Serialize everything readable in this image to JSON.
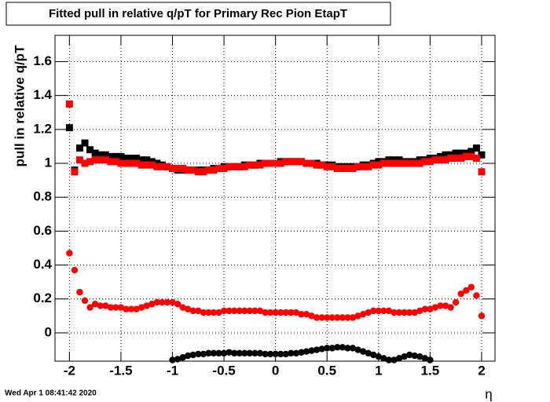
{
  "chart_data": {
    "type": "scatter",
    "title": "Fitted pull in relative q/pT for Primary Rec Pion EtapT",
    "y_label": "pull in relative q/pT",
    "x_label": "η",
    "timestamp": "Wed Apr  1 08:41:42 2020",
    "xlim": [
      -2.14,
      2.13
    ],
    "ylim": [
      -0.167,
      1.755
    ],
    "xticks": [
      -2,
      -1.5,
      -1,
      -0.5,
      0,
      0.5,
      1,
      1.5,
      2
    ],
    "yticks": [
      0,
      0.2,
      0.4,
      0.6,
      0.8,
      1,
      1.2,
      1.4,
      1.6
    ],
    "grid": true,
    "x": [
      -2,
      -1.95,
      -1.9,
      -1.85,
      -1.8,
      -1.75,
      -1.7,
      -1.65,
      -1.6,
      -1.55,
      -1.5,
      -1.45,
      -1.4,
      -1.35,
      -1.3,
      -1.25,
      -1.2,
      -1.15,
      -1.1,
      -1.05,
      -1,
      -0.95,
      -0.9,
      -0.85,
      -0.8,
      -0.75,
      -0.7,
      -0.65,
      -0.6,
      -0.55,
      -0.5,
      -0.45,
      -0.4,
      -0.35,
      -0.3,
      -0.25,
      -0.2,
      -0.15,
      -0.1,
      -0.05,
      0,
      0.05,
      0.1,
      0.15,
      0.2,
      0.25,
      0.3,
      0.35,
      0.4,
      0.45,
      0.5,
      0.55,
      0.6,
      0.65,
      0.7,
      0.75,
      0.8,
      0.85,
      0.9,
      0.95,
      1,
      1.05,
      1.1,
      1.15,
      1.2,
      1.25,
      1.3,
      1.35,
      1.4,
      1.45,
      1.5,
      1.55,
      1.6,
      1.65,
      1.7,
      1.75,
      1.8,
      1.85,
      1.9,
      1.95,
      2
    ],
    "series": [
      {
        "color": "#000000",
        "marker": "square",
        "values": [
          1.21,
          0.96,
          1.09,
          1.12,
          1.08,
          1.06,
          1.05,
          1.05,
          1.04,
          1.04,
          1.04,
          1.03,
          1.03,
          1.03,
          1.02,
          1.02,
          1.01,
          1.0,
          0.99,
          0.98,
          0.97,
          0.96,
          0.96,
          0.96,
          0.96,
          0.96,
          0.96,
          0.96,
          0.97,
          0.97,
          0.98,
          0.98,
          0.98,
          0.98,
          0.99,
          0.99,
          0.99,
          1.0,
          1.0,
          1.0,
          1.0,
          1.01,
          1.01,
          1.01,
          1.01,
          1.01,
          1.0,
          1.0,
          1.0,
          0.99,
          0.99,
          0.99,
          0.98,
          0.98,
          0.98,
          0.98,
          0.98,
          0.99,
          0.99,
          1.0,
          1.01,
          1.01,
          1.02,
          1.02,
          1.02,
          1.01,
          1.01,
          1.01,
          1.02,
          1.02,
          1.03,
          1.03,
          1.04,
          1.05,
          1.05,
          1.06,
          1.06,
          1.06,
          1.07,
          1.09,
          1.05
        ]
      },
      {
        "color": "#ff0000",
        "marker": "square",
        "values": [
          1.35,
          0.95,
          1.02,
          1.0,
          1.01,
          1.02,
          1.02,
          1.02,
          1.01,
          1.01,
          1.0,
          1.0,
          1.0,
          1.0,
          0.99,
          0.99,
          0.99,
          0.98,
          0.98,
          0.98,
          0.97,
          0.97,
          0.97,
          0.96,
          0.96,
          0.95,
          0.95,
          0.96,
          0.96,
          0.97,
          0.97,
          0.98,
          0.98,
          0.98,
          0.98,
          0.99,
          0.99,
          0.99,
          1.0,
          1.0,
          1.0,
          1.0,
          1.01,
          1.01,
          1.01,
          1.01,
          1.0,
          1.0,
          0.99,
          0.99,
          0.98,
          0.98,
          0.97,
          0.97,
          0.97,
          0.97,
          0.98,
          0.98,
          0.98,
          0.99,
          0.99,
          1.0,
          1.0,
          1.0,
          1.0,
          1.0,
          1.0,
          1.0,
          1.0,
          1.01,
          1.01,
          1.02,
          1.02,
          1.02,
          1.03,
          1.03,
          1.03,
          1.04,
          1.04,
          1.03,
          0.95
        ]
      },
      {
        "color": "#000000",
        "marker": "circle",
        "values": [
          null,
          null,
          null,
          null,
          null,
          null,
          null,
          null,
          null,
          null,
          null,
          null,
          null,
          null,
          null,
          null,
          null,
          null,
          null,
          null,
          -0.16,
          -0.155,
          -0.145,
          -0.135,
          -0.13,
          -0.125,
          -0.125,
          -0.12,
          -0.12,
          -0.12,
          -0.12,
          -0.115,
          -0.12,
          -0.12,
          -0.12,
          -0.12,
          -0.12,
          -0.12,
          -0.125,
          -0.125,
          -0.125,
          -0.125,
          -0.125,
          -0.12,
          -0.12,
          -0.115,
          -0.11,
          -0.105,
          -0.1,
          -0.095,
          -0.09,
          -0.09,
          -0.085,
          -0.085,
          -0.09,
          -0.09,
          -0.1,
          -0.11,
          -0.12,
          -0.13,
          -0.14,
          -0.15,
          -0.16,
          -0.16,
          -0.15,
          -0.14,
          -0.13,
          -0.135,
          -0.14,
          -0.15,
          -0.16,
          null,
          null,
          null,
          null,
          null,
          null,
          null,
          null,
          null,
          null
        ]
      },
      {
        "color": "#ff0000",
        "marker": "circle",
        "values": [
          0.47,
          0.37,
          0.24,
          0.19,
          0.15,
          0.17,
          0.16,
          0.16,
          0.15,
          0.15,
          0.15,
          0.14,
          0.14,
          0.14,
          0.15,
          0.16,
          0.17,
          0.18,
          0.18,
          0.18,
          0.18,
          0.17,
          0.15,
          0.14,
          0.13,
          0.13,
          0.12,
          0.12,
          0.12,
          0.12,
          0.13,
          0.13,
          0.13,
          0.13,
          0.13,
          0.13,
          0.13,
          0.13,
          0.12,
          0.12,
          0.12,
          0.12,
          0.12,
          0.12,
          0.12,
          0.11,
          0.11,
          0.1,
          0.09,
          0.09,
          0.09,
          0.09,
          0.09,
          0.09,
          0.09,
          0.09,
          0.1,
          0.11,
          0.12,
          0.13,
          0.13,
          0.13,
          0.13,
          0.12,
          0.12,
          0.12,
          0.12,
          0.12,
          0.13,
          0.14,
          0.14,
          0.15,
          0.16,
          0.16,
          0.15,
          0.18,
          0.23,
          0.25,
          0.27,
          0.22,
          0.1
        ]
      }
    ]
  }
}
